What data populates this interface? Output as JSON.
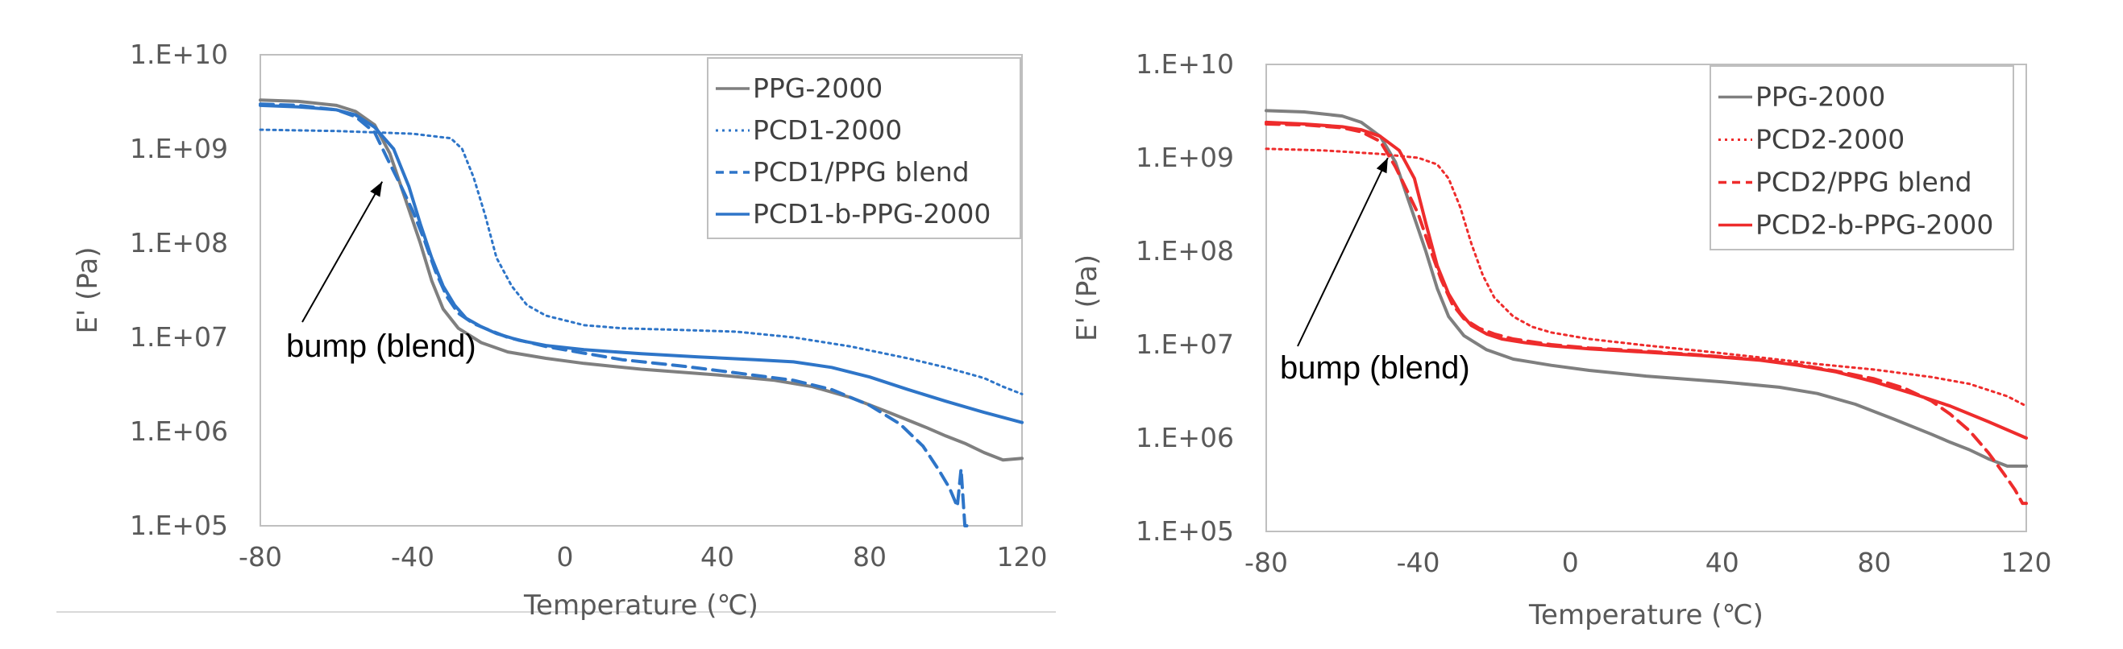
{
  "colors": {
    "gray": "#7f7f7f",
    "blue": "#2e75c8",
    "red": "#ee2c2c",
    "axis": "#bfbfbf",
    "text": "#595959"
  },
  "chart_data": [
    {
      "type": "line",
      "xlabel": "Temperature (℃)",
      "ylabel": "E' (Pa)",
      "xlim": [
        -80,
        120
      ],
      "ylim": [
        100000,
        10000000000
      ],
      "yscale": "log",
      "xticks": [
        "-80",
        "-40",
        "0",
        "40",
        "80",
        "120"
      ],
      "yticks": [
        "1.E+05",
        "1.E+06",
        "1.E+07",
        "1.E+08",
        "1.E+09",
        "1.E+10"
      ],
      "legend_position": "top-right",
      "grid": false,
      "annotation": "bump (blend)",
      "annotation_arrow_to": [
        -48,
        450000000
      ],
      "series": [
        {
          "name": "PPG-2000",
          "style": "solid",
          "color": "gray",
          "x": [
            -80,
            -70,
            -60,
            -55,
            -50,
            -46,
            -42,
            -38,
            -35,
            -32,
            -28,
            -22,
            -15,
            -5,
            5,
            20,
            40,
            55,
            65,
            75,
            85,
            95,
            100,
            105,
            110,
            115,
            120
          ],
          "y": [
            3300000000,
            3200000000,
            2900000000,
            2500000000,
            1800000000,
            900000000,
            300000000,
            100000000,
            40000000,
            20000000,
            12500000,
            8800000,
            7000000,
            6000000,
            5300000,
            4600000,
            4000000,
            3500000,
            3000000,
            2300000,
            1600000,
            1100000,
            900000,
            750000,
            600000,
            500000,
            520000
          ]
        },
        {
          "name": "PCD1-2000",
          "style": "dotted",
          "color": "blue",
          "x": [
            -80,
            -60,
            -40,
            -30,
            -27,
            -24,
            -21,
            -18,
            -14,
            -10,
            -5,
            5,
            15,
            30,
            45,
            60,
            75,
            90,
            100,
            110,
            115,
            120
          ],
          "y": [
            1600000000,
            1550000000,
            1450000000,
            1300000000,
            1000000000,
            500000000,
            200000000,
            70000000,
            35000000,
            22000000,
            17000000,
            13500000,
            12500000,
            12000000,
            11500000,
            10000000,
            8000000,
            6000000,
            4800000,
            3700000,
            3000000,
            2500000
          ]
        },
        {
          "name": "PCD1/PPG blend",
          "style": "dashed",
          "color": "blue",
          "x": [
            -80,
            -70,
            -60,
            -55,
            -50,
            -46,
            -43,
            -40,
            -37,
            -34,
            -31,
            -28,
            -24,
            -20,
            -15,
            -5,
            5,
            15,
            30,
            45,
            60,
            70,
            80,
            88,
            94,
            98,
            101,
            103,
            104,
            105,
            105.5
          ],
          "y": [
            3000000000,
            2900000000,
            2600000000,
            2200000000,
            1500000000,
            700000000,
            400000000,
            220000000,
            110000000,
            50000000,
            27000000,
            18000000,
            14000000,
            12000000,
            10000000,
            8000000,
            6800000,
            5800000,
            5000000,
            4200000,
            3500000,
            2800000,
            1900000,
            1200000,
            700000,
            400000,
            250000,
            160000,
            400000,
            100000,
            100000
          ]
        },
        {
          "name": "PCD1-b-PPG-2000",
          "style": "solid",
          "color": "blue",
          "x": [
            -80,
            -70,
            -60,
            -55,
            -50,
            -45,
            -41,
            -38,
            -35,
            -32,
            -29,
            -26,
            -22,
            -18,
            -12,
            -5,
            5,
            20,
            35,
            50,
            60,
            70,
            80,
            90,
            100,
            110,
            120
          ],
          "y": [
            2900000000,
            2800000000,
            2600000000,
            2300000000,
            1700000000,
            1000000000,
            400000000,
            160000000,
            70000000,
            35000000,
            22000000,
            16000000,
            13000000,
            11000000,
            9300000,
            8200000,
            7400000,
            6700000,
            6200000,
            5800000,
            5500000,
            4800000,
            3800000,
            2800000,
            2100000,
            1600000,
            1250000
          ]
        }
      ]
    },
    {
      "type": "line",
      "xlabel": "Temperature (℃)",
      "ylabel": "E' (Pa)",
      "xlim": [
        -80,
        120
      ],
      "ylim": [
        100000,
        10000000000
      ],
      "yscale": "log",
      "xticks": [
        "-80",
        "-40",
        "0",
        "40",
        "80",
        "120"
      ],
      "yticks": [
        "1.E+05",
        "1.E+06",
        "1.E+07",
        "1.E+08",
        "1.E+09",
        "1.E+10"
      ],
      "legend_position": "top-right",
      "grid": false,
      "annotation": "bump (blend)",
      "annotation_arrow_to": [
        -48,
        1000000000
      ],
      "series": [
        {
          "name": "PPG-2000",
          "style": "solid",
          "color": "gray",
          "x": [
            -80,
            -70,
            -60,
            -55,
            -50,
            -46,
            -42,
            -38,
            -35,
            -32,
            -28,
            -22,
            -15,
            -5,
            5,
            20,
            40,
            55,
            65,
            75,
            85,
            95,
            100,
            105,
            110,
            115,
            120
          ],
          "y": [
            3200000000,
            3100000000,
            2800000000,
            2400000000,
            1700000000,
            900000000,
            300000000,
            100000000,
            40000000,
            20000000,
            12500000,
            8800000,
            7000000,
            6000000,
            5300000,
            4600000,
            4000000,
            3500000,
            3000000,
            2300000,
            1600000,
            1100000,
            900000,
            750000,
            600000,
            500000,
            500000
          ]
        },
        {
          "name": "PCD2-2000",
          "style": "dotted",
          "color": "red",
          "x": [
            -80,
            -65,
            -50,
            -40,
            -35,
            -32,
            -29,
            -26,
            -23,
            -20,
            -15,
            -10,
            -5,
            5,
            20,
            35,
            50,
            65,
            80,
            95,
            105,
            115,
            120
          ],
          "y": [
            1250000000,
            1200000000,
            1100000000,
            1000000000,
            850000000,
            600000000,
            300000000,
            120000000,
            55000000,
            32000000,
            20000000,
            15500000,
            13500000,
            11500000,
            9800000,
            8500000,
            7300000,
            6200000,
            5400000,
            4500000,
            3800000,
            2800000,
            2200000
          ]
        },
        {
          "name": "PCD2/PPG blend",
          "style": "dashed",
          "color": "red",
          "x": [
            -80,
            -70,
            -60,
            -55,
            -50,
            -46,
            -43,
            -40,
            -37,
            -34,
            -31,
            -28,
            -24,
            -20,
            -15,
            -5,
            5,
            20,
            35,
            50,
            60,
            70,
            80,
            88,
            95,
            100,
            105,
            110,
            114,
            117,
            119,
            120
          ],
          "y": [
            2300000000,
            2250000000,
            2100000000,
            1900000000,
            1500000000,
            800000000,
            450000000,
            250000000,
            110000000,
            50000000,
            27000000,
            19000000,
            15000000,
            13000000,
            11500000,
            10000000,
            9200000,
            8500000,
            7700000,
            6900000,
            6100000,
            5200000,
            4300000,
            3400000,
            2500000,
            1800000,
            1200000,
            700000,
            420000,
            280000,
            200000,
            200000
          ]
        },
        {
          "name": "PCD2-b-PPG-2000",
          "style": "solid",
          "color": "red",
          "x": [
            -80,
            -70,
            -60,
            -55,
            -50,
            -45,
            -41,
            -38,
            -35,
            -32,
            -29,
            -26,
            -22,
            -18,
            -12,
            -5,
            5,
            20,
            35,
            50,
            60,
            70,
            80,
            90,
            100,
            110,
            120
          ],
          "y": [
            2400000000,
            2300000000,
            2150000000,
            2000000000,
            1700000000,
            1200000000,
            600000000,
            200000000,
            70000000,
            35000000,
            22000000,
            16000000,
            13000000,
            11500000,
            10500000,
            9700000,
            9000000,
            8300000,
            7600000,
            6800000,
            6000000,
            5100000,
            4000000,
            3000000,
            2200000,
            1500000,
            1000000
          ]
        }
      ]
    }
  ]
}
